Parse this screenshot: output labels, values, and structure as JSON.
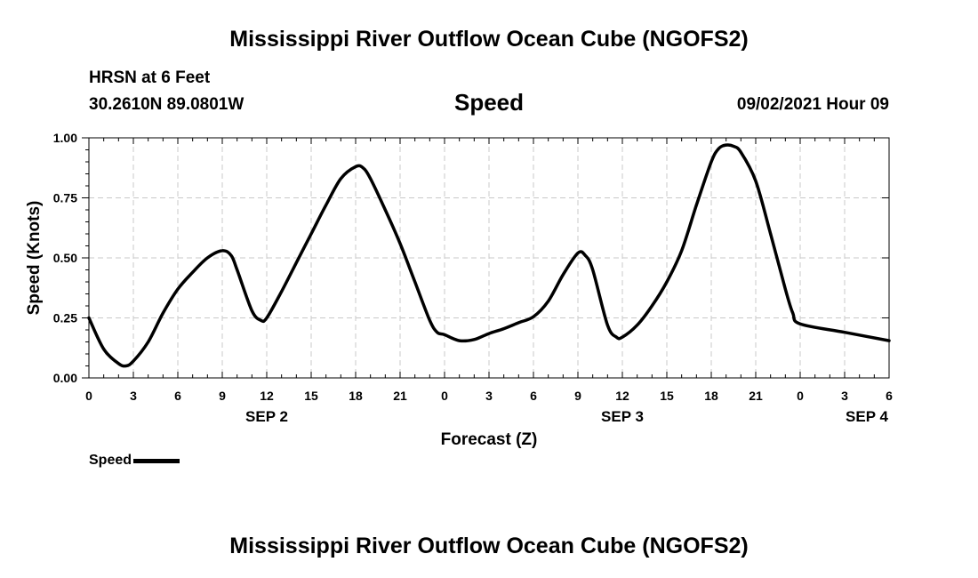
{
  "header": {
    "title": "Mississippi River Outflow Ocean Cube (NGOFS2)",
    "station": "HRSN at 6 Feet",
    "coords": "30.2610N  89.0801W",
    "variable": "Speed",
    "datetime": "09/02/2021 Hour 09"
  },
  "footer": {
    "title": "Mississippi River Outflow Ocean Cube (NGOFS2)"
  },
  "legend": {
    "label": "Speed",
    "color": "#000000"
  },
  "chart_data": {
    "type": "line",
    "title": "Speed",
    "xlabel": "Forecast (Z)",
    "ylabel": "Speed (Knots)",
    "x_unit": "forecast hour from 2021-09-02 00Z",
    "xlim": [
      0,
      54
    ],
    "ylim": [
      0,
      1
    ],
    "grid": true,
    "legend_position": "bottom-left",
    "x_ticks": [
      {
        "x": 0,
        "label": "0"
      },
      {
        "x": 3,
        "label": "3"
      },
      {
        "x": 6,
        "label": "6"
      },
      {
        "x": 9,
        "label": "9"
      },
      {
        "x": 12,
        "label": "12"
      },
      {
        "x": 15,
        "label": "15"
      },
      {
        "x": 18,
        "label": "18"
      },
      {
        "x": 21,
        "label": "21"
      },
      {
        "x": 24,
        "label": "0"
      },
      {
        "x": 27,
        "label": "3"
      },
      {
        "x": 30,
        "label": "6"
      },
      {
        "x": 33,
        "label": "9"
      },
      {
        "x": 36,
        "label": "12"
      },
      {
        "x": 39,
        "label": "15"
      },
      {
        "x": 42,
        "label": "18"
      },
      {
        "x": 45,
        "label": "21"
      },
      {
        "x": 48,
        "label": "0"
      },
      {
        "x": 51,
        "label": "3"
      },
      {
        "x": 54,
        "label": "6"
      }
    ],
    "date_labels": [
      {
        "x": 12,
        "label": "SEP 2"
      },
      {
        "x": 36,
        "label": "SEP 3"
      },
      {
        "x": 52.5,
        "label": "SEP 4"
      }
    ],
    "y_ticks": [
      {
        "y": 0,
        "label": "0.00"
      },
      {
        "y": 0.25,
        "label": "0.25"
      },
      {
        "y": 0.5,
        "label": "0.50"
      },
      {
        "y": 0.75,
        "label": "0.75"
      },
      {
        "y": 1,
        "label": "1.00"
      }
    ],
    "series": [
      {
        "name": "Speed",
        "color": "#000000",
        "x": [
          0,
          1,
          2,
          2.5,
          3,
          4,
          5,
          6,
          7,
          8,
          9,
          9.6,
          10,
          11,
          11.6,
          12,
          13,
          14,
          15,
          16,
          17,
          18,
          18.5,
          19,
          20,
          21,
          22,
          23,
          23.5,
          24,
          25,
          26,
          27,
          28,
          29,
          30,
          31,
          32,
          33,
          33.5,
          34,
          35,
          35.6,
          36,
          37,
          38,
          39,
          40,
          41,
          42,
          42.5,
          43,
          43.5,
          44,
          45,
          46,
          47,
          47.5,
          48,
          51,
          54
        ],
        "y": [
          0.25,
          0.12,
          0.06,
          0.05,
          0.07,
          0.15,
          0.27,
          0.37,
          0.44,
          0.5,
          0.53,
          0.51,
          0.45,
          0.28,
          0.24,
          0.25,
          0.36,
          0.48,
          0.6,
          0.72,
          0.83,
          0.88,
          0.875,
          0.83,
          0.7,
          0.56,
          0.4,
          0.24,
          0.19,
          0.18,
          0.155,
          0.16,
          0.185,
          0.205,
          0.23,
          0.255,
          0.32,
          0.43,
          0.52,
          0.51,
          0.45,
          0.22,
          0.17,
          0.17,
          0.22,
          0.3,
          0.4,
          0.53,
          0.72,
          0.9,
          0.955,
          0.97,
          0.965,
          0.94,
          0.82,
          0.6,
          0.37,
          0.27,
          0.225,
          0.19,
          0.155
        ]
      }
    ]
  }
}
